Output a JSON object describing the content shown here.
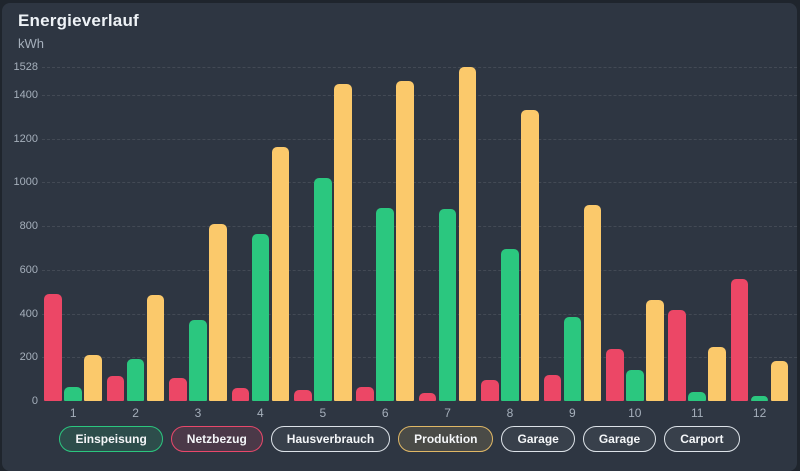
{
  "header": {
    "title": "Energieverlauf",
    "unit": "kWh"
  },
  "colors": {
    "page_bg": "#1f252d",
    "card_bg": "#2e3642",
    "title_text": "#eef2f6",
    "axis_text": "#a5afbb",
    "grid_line": "rgba(255,255,255,0.10)",
    "bar_red": "#ec4766",
    "bar_green": "#2bc77f",
    "bar_yellow": "#fbc96b"
  },
  "chart_data": {
    "type": "bar",
    "title": "Energieverlauf",
    "ylabel": "kWh",
    "xlabel": "",
    "categories": [
      "1",
      "2",
      "3",
      "4",
      "5",
      "6",
      "7",
      "8",
      "9",
      "10",
      "11",
      "12"
    ],
    "series": [
      {
        "name": "Netzbezug",
        "color": "#ec4766",
        "values": [
          490,
          115,
          105,
          60,
          50,
          65,
          35,
          95,
          120,
          240,
          415,
          560
        ]
      },
      {
        "name": "Einspeisung",
        "color": "#2bc77f",
        "values": [
          65,
          190,
          370,
          765,
          1020,
          885,
          880,
          695,
          385,
          140,
          40,
          25
        ]
      },
      {
        "name": "Produktion",
        "color": "#fbc96b",
        "values": [
          210,
          485,
          810,
          1160,
          1450,
          1465,
          1528,
          1330,
          895,
          460,
          245,
          185
        ]
      }
    ],
    "yticks": [
      0,
      200,
      400,
      600,
      800,
      1000,
      1200,
      1400,
      1528
    ],
    "ylim": [
      0,
      1528
    ],
    "grid": "dashed-horizontal",
    "legend_position": "bottom"
  },
  "legend": {
    "items": [
      {
        "label": "Einspeisung",
        "state": "active",
        "color": "#2bc77f",
        "fill": "rgba(43,199,127,0.16)"
      },
      {
        "label": "Netzbezug",
        "state": "active",
        "color": "#e9486b",
        "fill": "rgba(233,72,107,0.16)"
      },
      {
        "label": "Hausverbrauch",
        "state": "inactive",
        "color": "#dde3e9",
        "fill": "rgba(255,255,255,0.05)"
      },
      {
        "label": "Produktion",
        "state": "active",
        "color": "#e0b866",
        "fill": "rgba(224,184,102,0.16)"
      },
      {
        "label": "Garage",
        "state": "inactive",
        "color": "#dde3e9",
        "fill": "rgba(255,255,255,0.05)"
      },
      {
        "label": "Garage",
        "state": "inactive",
        "color": "#dde3e9",
        "fill": "rgba(255,255,255,0.05)"
      },
      {
        "label": "Carport",
        "state": "inactive",
        "color": "#dde3e9",
        "fill": "rgba(255,255,255,0.05)"
      }
    ]
  }
}
